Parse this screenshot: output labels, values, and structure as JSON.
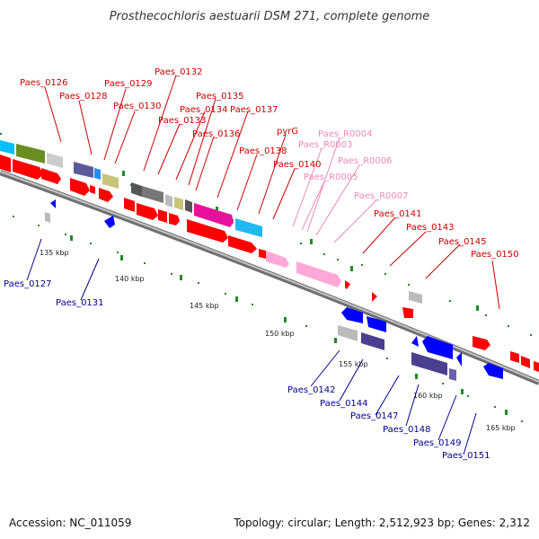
{
  "title": "Prosthecochloris aestuarii DSM 271, complete genome",
  "footer": {
    "accession": "Accession: NC_011059",
    "summary": "Topology: circular; Length: 2,512,923 bp; Genes: 2,312"
  },
  "colors": {
    "forward_label": "#cc0000",
    "reverse_label": "#00008b",
    "rna_label": "#ee88bb",
    "tick": "#228b22",
    "backbone": "#888888"
  },
  "scale_ticks": [
    "135 kbp",
    "140 kbp",
    "145 kbp",
    "150 kbp",
    "155 kbp",
    "160 kbp",
    "165 kbp"
  ],
  "forward_labels": [
    "Paes_0126",
    "Paes_0128",
    "Paes_0129",
    "Paes_0130",
    "Paes_0132",
    "Paes_0133",
    "Paes_0134",
    "Paes_0135",
    "Paes_0136",
    "Paes_0137",
    "Paes_0138",
    "pyrG",
    "Paes_0140",
    "Paes_0141",
    "Paes_0143",
    "Paes_0145",
    "Paes_0150"
  ],
  "rna_labels": [
    "Paes_R0004",
    "Paes_R0003",
    "Paes_R0006",
    "Paes_R0005",
    "Paes_R0007"
  ],
  "reverse_labels": [
    "Paes_0127",
    "Paes_0131",
    "Paes_0142",
    "Paes_0144",
    "Paes_0147",
    "Paes_0148",
    "Paes_0149",
    "Paes_0151"
  ]
}
